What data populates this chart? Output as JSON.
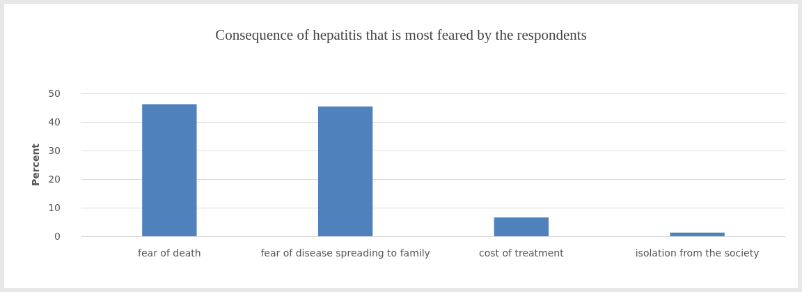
{
  "chart_data": {
    "type": "bar",
    "title": "Consequence of hepatitis that is most feared by the respondents",
    "ylabel": "Percent",
    "categories": [
      "fear of death",
      "fear of disease spreading to family",
      "cost of treatment",
      "isolation from the society"
    ],
    "values": [
      46.2,
      45.4,
      6.6,
      1.3
    ],
    "color": "#4f81bd",
    "ylim": [
      0,
      50
    ],
    "yticks": [
      0,
      10,
      20,
      30,
      40,
      50
    ],
    "grid": "y"
  }
}
